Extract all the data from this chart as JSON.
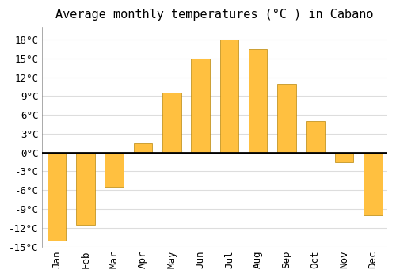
{
  "months": [
    "Jan",
    "Feb",
    "Mar",
    "Apr",
    "May",
    "Jun",
    "Jul",
    "Aug",
    "Sep",
    "Oct",
    "Nov",
    "Dec"
  ],
  "values": [
    -14,
    -11.5,
    -5.5,
    1.5,
    9.5,
    15,
    18,
    16.5,
    11,
    5,
    -1.5,
    -10
  ],
  "bar_color": "#FFC040",
  "bar_edge_color": "#B8860B",
  "title": "Average monthly temperatures (°C ) in Cabano",
  "title_fontsize": 11,
  "tick_fontsize": 9,
  "ylim": [
    -15,
    20
  ],
  "yticks": [
    -15,
    -12,
    -9,
    -6,
    -3,
    0,
    3,
    6,
    9,
    12,
    15,
    18
  ],
  "ytick_labels": [
    "-15°C",
    "-12°C",
    "-9°C",
    "-6°C",
    "-3°C",
    "0°C",
    "3°C",
    "6°C",
    "9°C",
    "12°C",
    "15°C",
    "18°C"
  ],
  "background_color": "#ffffff",
  "grid_color": "#dddddd",
  "zero_line_color": "#000000"
}
